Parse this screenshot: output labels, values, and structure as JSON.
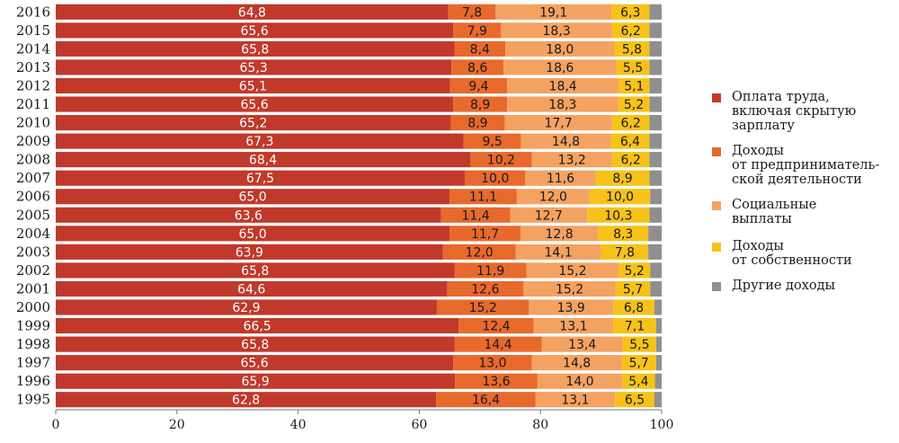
{
  "chart_data": {
    "type": "bar",
    "orientation": "horizontal",
    "stacked": true,
    "categories": [
      "2016",
      "2015",
      "2014",
      "2013",
      "2012",
      "2011",
      "2010",
      "2009",
      "2008",
      "2007",
      "2006",
      "2005",
      "2004",
      "2003",
      "2002",
      "2001",
      "2000",
      "1999",
      "1998",
      "1997",
      "1996",
      "1995"
    ],
    "series": [
      {
        "name": "Оплата труда,\nвключая скрытую\nзарплату",
        "color": "#c0392b",
        "values": [
          64.8,
          65.6,
          65.8,
          65.3,
          65.1,
          65.6,
          65.2,
          67.3,
          68.4,
          67.5,
          65.0,
          63.6,
          65.0,
          63.9,
          65.8,
          64.6,
          62.9,
          66.5,
          65.8,
          65.6,
          65.9,
          62.8
        ],
        "labels": [
          "64,8",
          "65,6",
          "65,8",
          "65,3",
          "65,1",
          "65,6",
          "65,2",
          "67,3",
          "68,4",
          "67,5",
          "65,0",
          "63,6",
          "65,0",
          "63,9",
          "65,8",
          "64,6",
          "62,9",
          "66,5",
          "65,8",
          "65,6",
          "65,9",
          "62,8"
        ]
      },
      {
        "name": "Доходы\nот предпринима­тель-\nской деятельности",
        "color": "#e8692c",
        "values": [
          7.8,
          7.9,
          8.4,
          8.6,
          9.4,
          8.9,
          8.9,
          9.5,
          10.2,
          10.0,
          11.1,
          11.4,
          11.7,
          12.0,
          11.9,
          12.6,
          15.2,
          12.4,
          14.4,
          13.0,
          13.6,
          16.4
        ],
        "labels": [
          "7,8",
          "7,9",
          "8,4",
          "8,6",
          "9,4",
          "8,9",
          "8,9",
          "9,5",
          "10,2",
          "10,0",
          "11,1",
          "11,4",
          "11,7",
          "12,0",
          "11,9",
          "12,6",
          "15,2",
          "12,4",
          "14,4",
          "13,0",
          "13,6",
          "16,4"
        ]
      },
      {
        "name": "Социальные\nвыплаты",
        "color": "#f4a261",
        "values": [
          19.1,
          18.3,
          18.0,
          18.6,
          18.4,
          18.3,
          17.7,
          14.8,
          13.2,
          11.6,
          12.0,
          12.7,
          12.8,
          14.1,
          15.2,
          15.2,
          13.9,
          13.1,
          13.4,
          14.8,
          14.0,
          13.1
        ],
        "labels": [
          "19,1",
          "18,3",
          "18,0",
          "18,6",
          "18,4",
          "18,3",
          "17,7",
          "14,8",
          "13,2",
          "11,6",
          "12,0",
          "12,7",
          "12,8",
          "14,1",
          "15,2",
          "15,2",
          "13,9",
          "13,1",
          "13,4",
          "14,8",
          "14,0",
          "13,1"
        ]
      },
      {
        "name": "Доходы\nот собственности",
        "color": "#f6c21a",
        "values": [
          6.3,
          6.2,
          5.8,
          5.5,
          5.1,
          5.2,
          6.2,
          6.4,
          6.2,
          8.9,
          10.0,
          10.3,
          8.3,
          7.8,
          5.2,
          5.7,
          6.8,
          7.1,
          5.5,
          5.7,
          5.4,
          6.5
        ],
        "labels": [
          "6,3",
          "6,2",
          "5,8",
          "5,5",
          "5,1",
          "5,2",
          "6,2",
          "6,4",
          "6,2",
          "8,9",
          "10,0",
          "10,3",
          "8,3",
          "7,8",
          "5,2",
          "5,7",
          "6,8",
          "7,1",
          "5,5",
          "5,7",
          "5,4",
          "6,5"
        ]
      },
      {
        "name": "Другие доходы",
        "color": "#8f8f8f",
        "values": [
          2.0,
          2.0,
          2.0,
          2.0,
          2.0,
          2.0,
          2.0,
          2.0,
          2.0,
          2.0,
          1.9,
          2.0,
          2.2,
          2.2,
          1.9,
          1.9,
          1.2,
          0.9,
          0.9,
          0.9,
          1.1,
          1.2
        ],
        "labels": []
      }
    ],
    "xlim": [
      0,
      100
    ],
    "xticks": [
      "0",
      "20",
      "40",
      "60",
      "80",
      "100"
    ],
    "grid": false,
    "legend_position": "right"
  }
}
